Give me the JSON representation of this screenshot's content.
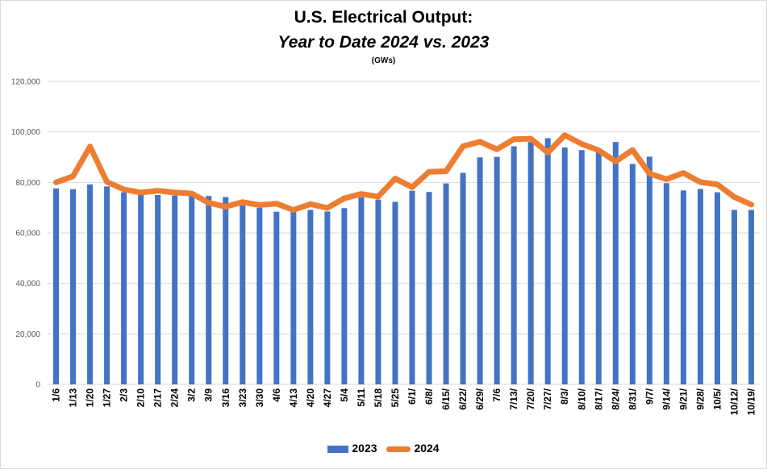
{
  "colors": {
    "bar": "#4472C4",
    "line": "#ED7D31",
    "grid": "#d9d9d9"
  },
  "chart_data": {
    "type": "bar",
    "title": "U.S. Electrical Output:",
    "subtitle": "Year to Date 2024 vs. 2023",
    "unit": "(GWs)",
    "ylim": [
      0,
      120000
    ],
    "yticks": [
      0,
      20000,
      40000,
      60000,
      80000,
      100000,
      120000
    ],
    "ytick_labels": [
      "0",
      "20,000",
      "40,000",
      "60,000",
      "80,000",
      "100,000",
      "120,000"
    ],
    "grid": true,
    "legend": "bottom",
    "categories": [
      "1/6",
      "1/13",
      "1/20",
      "1/27",
      "2/3",
      "2/10",
      "2/17",
      "2/24",
      "3/2",
      "3/9",
      "3/16",
      "3/23",
      "3/30",
      "4/6",
      "4/13",
      "4/20",
      "4/27",
      "5/4",
      "5/11",
      "5/18",
      "5/25",
      "6/1/",
      "6/8/",
      "6/15/",
      "6/22/",
      "6/29/",
      "7/6",
      "7/13/",
      "7/20/",
      "7/27/",
      "8/3/",
      "8/10/",
      "8/17/",
      "8/24/",
      "8/31/",
      "9/7/",
      "9/14/",
      "9/21/",
      "9/28/",
      "10/5/",
      "10/12/",
      "10/19/"
    ],
    "series": [
      {
        "name": "2023",
        "kind": "bar",
        "values": [
          77600,
          77300,
          79200,
          78400,
          76100,
          75100,
          75000,
          74800,
          75200,
          74600,
          74200,
          70900,
          69900,
          68400,
          69000,
          69100,
          68500,
          69800,
          74100,
          73200,
          72300,
          76700,
          76200,
          79600,
          83800,
          89900,
          90100,
          94300,
          96000,
          97500,
          93800,
          92800,
          91900,
          96000,
          87300,
          90200,
          79700,
          76800,
          77400,
          76100,
          69100,
          69100
        ]
      },
      {
        "name": "2024",
        "kind": "line",
        "values": [
          80000,
          82400,
          94200,
          80200,
          77200,
          76000,
          76700,
          76000,
          75600,
          71900,
          70400,
          72200,
          71000,
          71600,
          69100,
          71400,
          69900,
          73700,
          75400,
          74400,
          81500,
          78100,
          84200,
          84400,
          94300,
          96100,
          93100,
          97100,
          97300,
          91800,
          98700,
          95200,
          92700,
          88300,
          92800,
          83500,
          81300,
          83700,
          80100,
          79200,
          74200,
          71200
        ]
      }
    ]
  }
}
